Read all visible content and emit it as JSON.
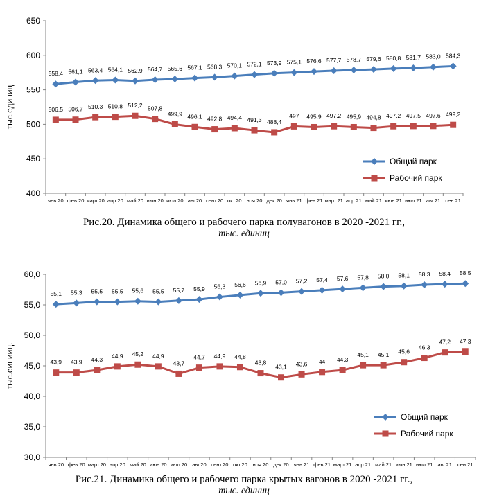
{
  "chart_data": [
    {
      "type": "line",
      "ylabel": "тыс.единиц",
      "ylim": [
        400,
        650
      ],
      "yticks": [
        "400",
        "450",
        "500",
        "550",
        "600",
        "650"
      ],
      "grid": false,
      "legend": "bottom-right",
      "categories": [
        "янв.20",
        "фев.20",
        "март.20",
        "апр.20",
        "май.20",
        "июн.20",
        "июл.20",
        "авг.20",
        "сент.20",
        "окт.20",
        "ноя.20",
        "дек.20",
        "янв.21",
        "фев.21",
        "март.21",
        "апр.21",
        "май.21",
        "июн.21",
        "июл.21",
        "авг.21",
        "сен.21"
      ],
      "series": [
        {
          "name": "Общий парк",
          "color": "#4a7ebb",
          "marker": "diamond",
          "values": [
            558.4,
            561.1,
            563.4,
            564.1,
            562.9,
            564.7,
            565.6,
            567.1,
            568.3,
            570.1,
            572.1,
            573.9,
            575.1,
            576.6,
            577.7,
            578.7,
            579.6,
            580.8,
            581.7,
            583.0,
            584.3
          ],
          "labels": [
            "558,4",
            "561,1",
            "563,4",
            "564,1",
            "562,9",
            "564,7",
            "565,6",
            "567,1",
            "568,3",
            "570,1",
            "572,1",
            "573,9",
            "575,1",
            "576,6",
            "577,7",
            "578,7",
            "579,6",
            "580,8",
            "581,7",
            "583,0",
            "584,3"
          ]
        },
        {
          "name": "Рабочий парк",
          "color": "#be4b48",
          "marker": "square",
          "values": [
            506.5,
            506.7,
            510.3,
            510.8,
            512.2,
            507.8,
            499.9,
            496.1,
            492.8,
            494.4,
            491.3,
            488.4,
            497,
            495.9,
            497.2,
            495.9,
            494.8,
            497.2,
            497.5,
            497.6,
            499.2
          ],
          "labels": [
            "506,5",
            "506,7",
            "510,3",
            "510,8",
            "512,2",
            "507,8",
            "499,9",
            "496,1",
            "492,8",
            "494,4",
            "491,3",
            "488,4",
            "497",
            "495,9",
            "497,2",
            "495,9",
            "494,8",
            "497,2",
            "497,5",
            "497,6",
            "499,2"
          ]
        }
      ]
    },
    {
      "type": "line",
      "ylabel": "тыс.еинииц.",
      "ylim": [
        30,
        60
      ],
      "yticks": [
        "30,0",
        "35,0",
        "40,0",
        "45,0",
        "50,0",
        "55,0",
        "60,0"
      ],
      "grid": false,
      "legend": "bottom-right",
      "categories": [
        "янв.20",
        "фев.20",
        "март.20",
        "апр.20",
        "май.20",
        "июн.20",
        "июл.20",
        "авг.20",
        "сент.20",
        "окт.20",
        "ноя.20",
        "дек.20",
        "янв.21",
        "фев.21",
        "март.21",
        "апр.21",
        "май.21",
        "июн.21",
        "июл.21",
        "авг.21",
        "сен.21"
      ],
      "series": [
        {
          "name": "Общий парк",
          "color": "#4a7ebb",
          "marker": "diamond",
          "values": [
            55.1,
            55.3,
            55.5,
            55.5,
            55.6,
            55.5,
            55.7,
            55.9,
            56.3,
            56.6,
            56.9,
            57.0,
            57.2,
            57.4,
            57.6,
            57.8,
            58.0,
            58.1,
            58.3,
            58.4,
            58.5
          ],
          "labels": [
            "55,1",
            "55,3",
            "55,5",
            "55,5",
            "55,6",
            "55,5",
            "55,7",
            "55,9",
            "56,3",
            "56,6",
            "56,9",
            "57,0",
            "57,2",
            "57,4",
            "57,6",
            "57,8",
            "58,0",
            "58,1",
            "58,3",
            "58,4",
            "58,5"
          ]
        },
        {
          "name": "Рабочий парк",
          "color": "#be4b48",
          "marker": "square",
          "values": [
            43.9,
            43.9,
            44.3,
            44.9,
            45.2,
            44.9,
            43.7,
            44.7,
            44.9,
            44.8,
            43.8,
            43.1,
            43.6,
            44,
            44.3,
            45.1,
            45.1,
            45.6,
            46.3,
            47.2,
            47.3
          ],
          "labels": [
            "43,9",
            "43,9",
            "44,3",
            "44,9",
            "45,2",
            "44,9",
            "43,7",
            "44,7",
            "44,9",
            "44,8",
            "43,8",
            "43,1",
            "43,6",
            "44",
            "44,3",
            "45,1",
            "45,1",
            "45,6",
            "46,3",
            "47,2",
            "47,3"
          ]
        }
      ]
    }
  ],
  "captions": [
    {
      "line1": "Рис.20. Динамика общего и рабочего парка полувагонов в 2020 -2021 гг.,",
      "line2": "тыс. единиц"
    },
    {
      "line1": "Рис.21. Динамика общего и рабочего парка  крытых вагонов в 2020 -2021 гг.,",
      "line2": "тыс. единиц"
    }
  ]
}
